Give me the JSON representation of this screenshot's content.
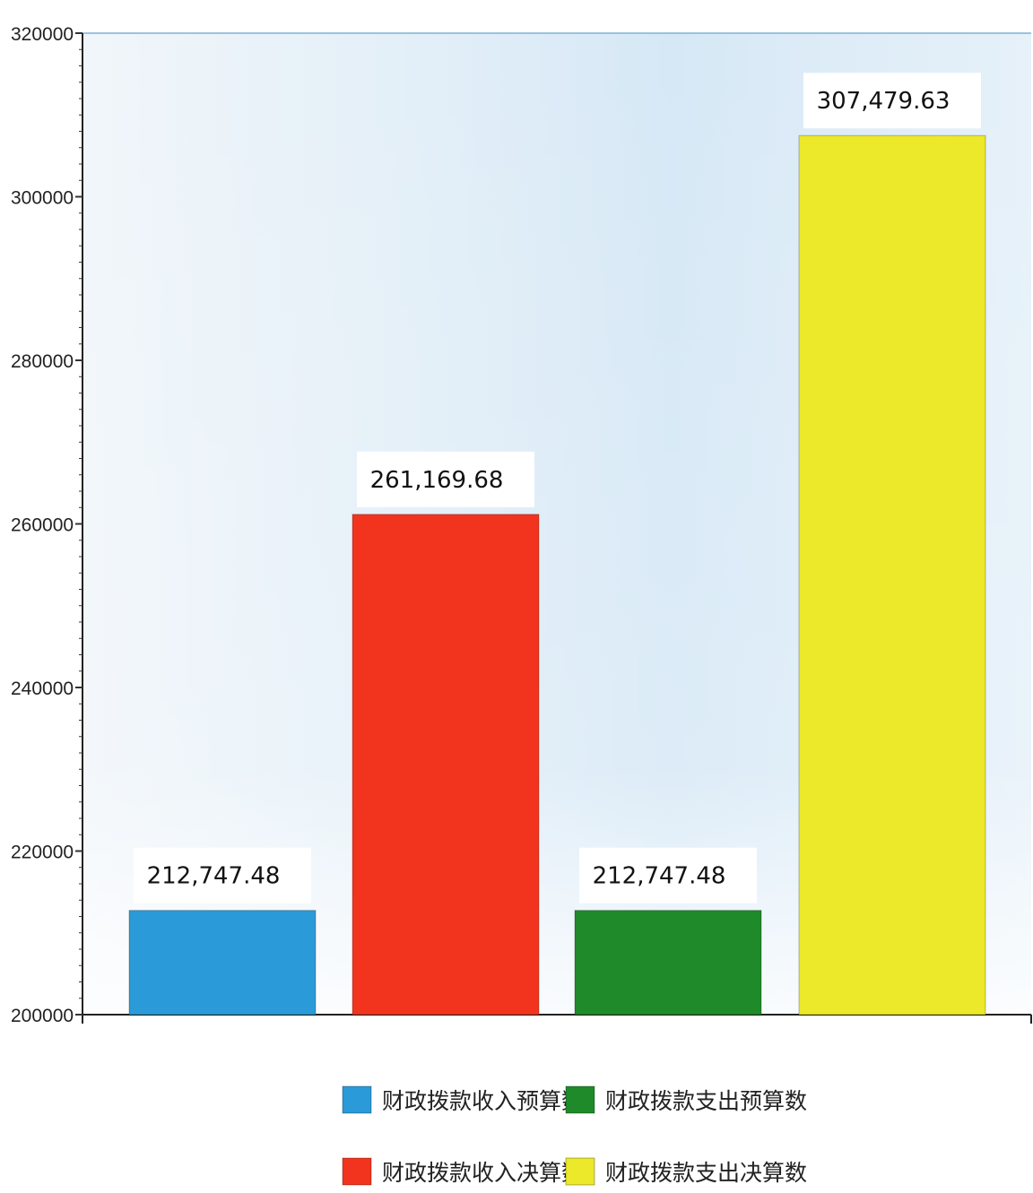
{
  "chart_data": {
    "type": "bar",
    "categories": [
      "财政拨款收入预算数",
      "财政拨款收入决算数",
      "财政拨款支出预算数",
      "财政拨款支出决算数"
    ],
    "values": [
      212747.48,
      261169.68,
      212747.48,
      307479.63
    ],
    "value_labels": [
      "212,747.48",
      "261,169.68",
      "212,747.48",
      "307,479.63"
    ],
    "colors": [
      "#2b9ad8",
      "#f2341e",
      "#1f8a2a",
      "#ece82a"
    ],
    "ylim": [
      200000,
      320000
    ],
    "yticks": [
      200000,
      220000,
      240000,
      260000,
      280000,
      300000,
      320000
    ],
    "ytick_labels": [
      "200000",
      "220000",
      "240000",
      "260000",
      "280000",
      "300000",
      "320000"
    ],
    "title": "",
    "xlabel": "",
    "ylabel": "",
    "grid": false,
    "legend_position": "bottom",
    "legend_order": [
      0,
      2,
      1,
      3
    ]
  }
}
